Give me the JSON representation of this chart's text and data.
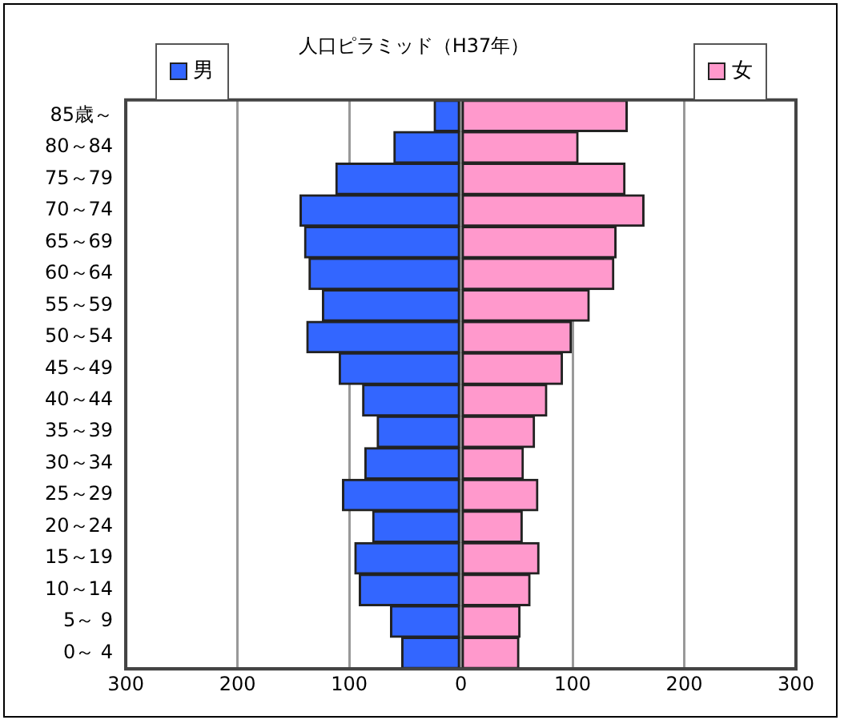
{
  "chart_data": {
    "type": "bar",
    "title": "人口ピラミッド（H37年）",
    "orientation": "horizontal",
    "stacked": true,
    "categories": [
      "85歳～",
      "80～84",
      "75～79",
      "70～74",
      "65～69",
      "60～64",
      "55～59",
      "50～54",
      "45～49",
      "40～44",
      "35～39",
      "30～34",
      "25～29",
      "20～24",
      "15～19",
      "10～14",
      "5～ 9",
      "0～ 4"
    ],
    "series": [
      {
        "name": "男",
        "color": "#3366ff",
        "values": [
          -24,
          -60,
          -112,
          -144,
          -140,
          -136,
          -124,
          -138,
          -109,
          -88,
          -75,
          -86,
          -106,
          -79,
          -95,
          -91,
          -63,
          -53
        ]
      },
      {
        "name": "女",
        "color": "#ff99cc",
        "values": [
          149,
          105,
          147,
          164,
          139,
          137,
          115,
          99,
          91,
          77,
          66,
          56,
          69,
          55,
          70,
          62,
          53,
          52
        ]
      }
    ],
    "xlim": [
      -300,
      300
    ],
    "xticks": [
      {
        "value": -300,
        "label": "300"
      },
      {
        "value": -200,
        "label": "200"
      },
      {
        "value": -100,
        "label": "100"
      },
      0,
      100,
      200,
      300
    ],
    "grid": "x",
    "legend": "top"
  }
}
